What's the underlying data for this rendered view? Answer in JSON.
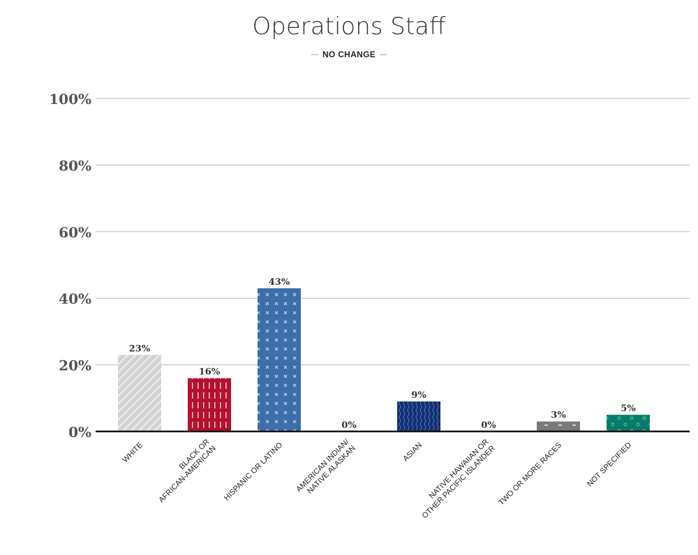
{
  "chart_data": {
    "type": "bar",
    "title": "Operations Staff",
    "subtitle": "NO CHANGE",
    "categories": [
      "WHITE",
      "BLACK OR\nAFRICAN-AMERICAN",
      "HISPANIC OR LATINO",
      "AMERICAN INDIAN/\nNATIVE ALASKAN",
      "ASIAN",
      "NATIVE HAWAIIAN OR\nOTHER PACIFIC ISLANDER",
      "TWO OR MORE RACES",
      "NOT SPECIFIED"
    ],
    "values": [
      23,
      16,
      43,
      0,
      9,
      0,
      3,
      5
    ],
    "data_labels": [
      "23%",
      "16%",
      "43%",
      "0%",
      "9%",
      "0%",
      "3%",
      "5%"
    ],
    "colors": [
      "#d3d3d3",
      "#b5112e",
      "#3e6daa",
      "#2a4a8a",
      "#14306e",
      "#888888",
      "#7a7a7a",
      "#0a7a6e"
    ],
    "patterns": [
      "diagonal-stripes",
      "vertical-dashes",
      "x-marks",
      "none",
      "waves",
      "none",
      "triangles",
      "circles"
    ],
    "ylim": [
      0,
      100
    ],
    "yticks": [
      "0%",
      "20%",
      "40%",
      "60%",
      "80%",
      "100%"
    ],
    "ytick_values": [
      0,
      20,
      40,
      60,
      80,
      100
    ],
    "grid": true,
    "xlabel": "",
    "ylabel": ""
  }
}
